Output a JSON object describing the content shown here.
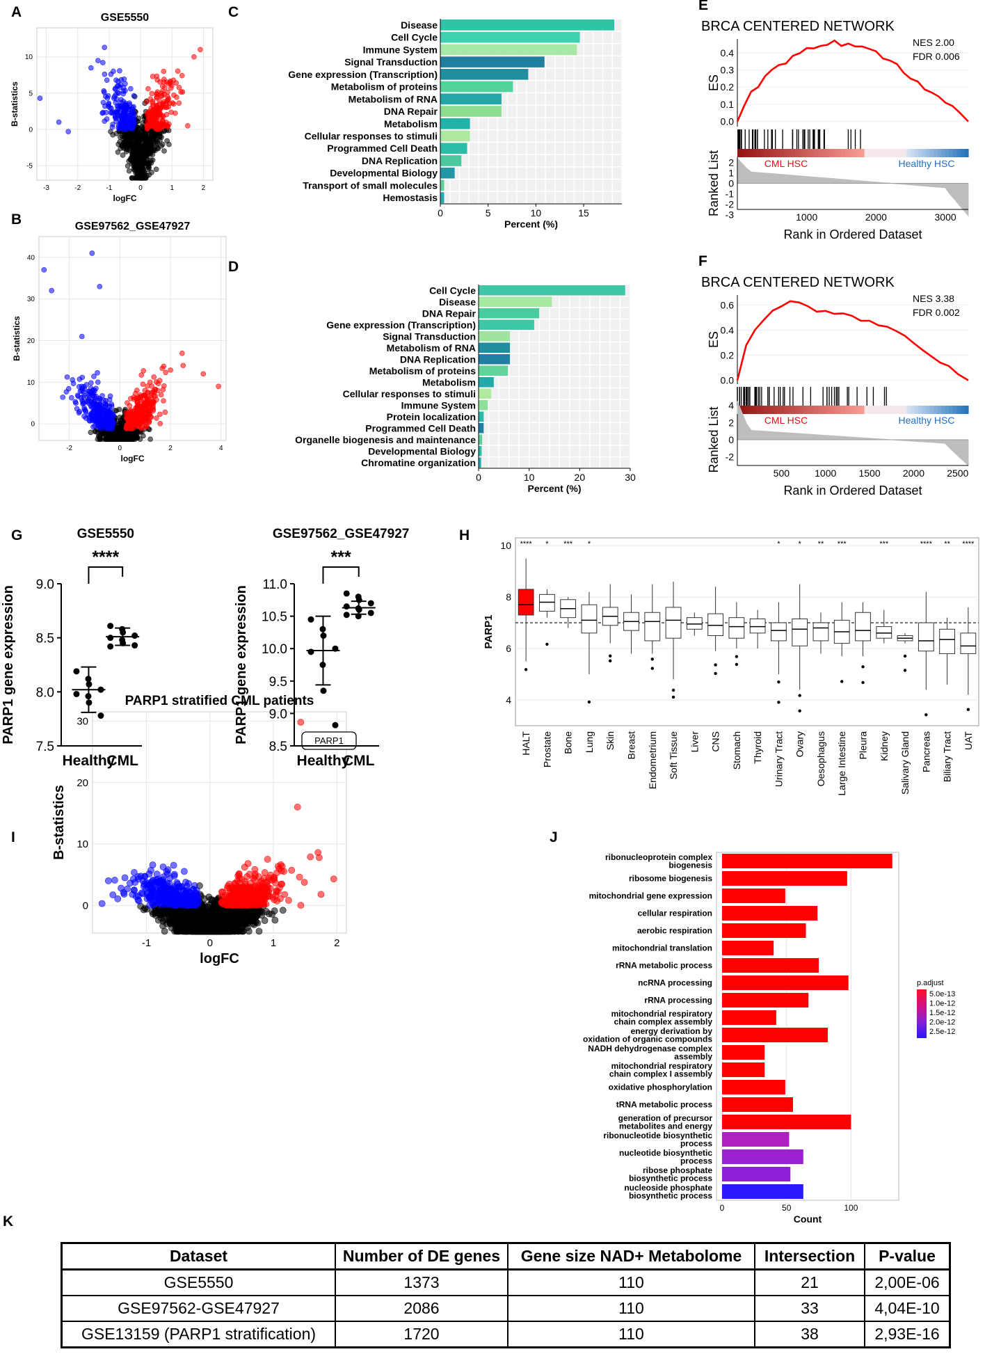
{
  "panels": {
    "A": {
      "letter": "A",
      "type": "scatter",
      "title": "GSE5550",
      "xlabel": "logFC",
      "ylabel": "B-statistics",
      "xlim": [
        -3.3,
        2.3
      ],
      "ylim": [
        -7,
        14
      ],
      "xticks": [
        -3,
        -2,
        -1,
        0,
        1,
        2
      ],
      "yticks": [
        -5,
        0,
        5,
        10
      ]
    },
    "B": {
      "letter": "B",
      "type": "scatter",
      "title": "GSE97562_GSE47927",
      "xlabel": "logFC",
      "ylabel": "B-statistics",
      "xlim": [
        -3.2,
        4.2
      ],
      "ylim": [
        -4,
        45
      ],
      "xticks": [
        -2,
        0,
        2,
        4
      ],
      "yticks": [
        0,
        10,
        20,
        30,
        40
      ]
    },
    "C": {
      "letter": "C",
      "type": "bar",
      "xlabel": "Percent (%)",
      "xlim": [
        0,
        19
      ],
      "xticks": [
        0,
        5,
        10,
        15
      ],
      "categories": [
        "Disease",
        "Cell Cycle",
        "Immune System",
        "Signal Transduction",
        "Gene expression (Transcription)",
        "Metabolism of proteins",
        "Metabolism of RNA",
        "DNA Repair",
        "Metabolism",
        "Cellular responses to stimuli",
        "Programmed Cell Death",
        "DNA Replication",
        "Developmental Biology",
        "Transport of small molecules",
        "Hemostasis"
      ],
      "values": [
        18.2,
        14.6,
        14.3,
        10.9,
        9.2,
        7.6,
        6.4,
        6.4,
        3.1,
        3.1,
        2.8,
        2.2,
        1.5,
        0.4,
        0.4
      ],
      "colors": [
        "#2ec4a6",
        "#3ed0b0",
        "#a7e9a4",
        "#1f7fa0",
        "#1f8ea0",
        "#52d39c",
        "#24a6a6",
        "#8ddf8f",
        "#22b3a8",
        "#aee8a0",
        "#2bbda8",
        "#4bc89e",
        "#2197a6",
        "#5fd09a",
        "#26aab0"
      ]
    },
    "D": {
      "letter": "D",
      "type": "bar",
      "xlabel": "Percent (%)",
      "xlim": [
        0,
        30
      ],
      "xticks": [
        0,
        10,
        20,
        30
      ],
      "categories": [
        "Cell Cycle",
        "Disease",
        "DNA Repair",
        "Gene expression (Transcription)",
        "Signal Transduction",
        "Metabolism of RNA",
        "DNA Replication",
        "Metabolism of proteins",
        "Metabolism",
        "Cellular responses to stimuli",
        "Immune System",
        "Protein localization",
        "Programmed Cell Death",
        "Organelle biogenesis and maintenance",
        "Developmental Biology",
        "Chromatine organization"
      ],
      "values": [
        29.0,
        14.5,
        12.0,
        11.0,
        6.2,
        6.2,
        6.2,
        5.8,
        3.0,
        2.5,
        1.8,
        1.0,
        1.0,
        0.7,
        0.6,
        0.5
      ],
      "colors": [
        "#3ec6a6",
        "#a8e8a0",
        "#48cc9e",
        "#3cc8a4",
        "#9fe3a0",
        "#1f8ea0",
        "#1f7fa0",
        "#62d49a",
        "#22a9a8",
        "#b0ea9e",
        "#8fe09a",
        "#2cb8aa",
        "#1f7fa0",
        "#5fd09a",
        "#30bda8",
        "#26aab0"
      ]
    },
    "E": {
      "letter": "E",
      "type": "line",
      "title": "BRCA CENTERED NETWORK",
      "nes": "NES 2.00",
      "fdr": "FDR 0.006",
      "ylabel_top": "ES",
      "ylabel_bottom": "Ranked List",
      "xlabel": "Rank in Ordered Dataset",
      "x": [
        0,
        100,
        200,
        300,
        400,
        500,
        600,
        700,
        800,
        900,
        1000,
        1100,
        1200,
        1300,
        1400,
        1500,
        1600,
        1700,
        1800,
        1900,
        2000,
        2100,
        2200,
        2300,
        2400,
        2500,
        2600,
        2700,
        2800,
        2900,
        3000,
        3100,
        3200,
        3330
      ],
      "es": [
        0.0,
        0.09,
        0.16,
        0.21,
        0.26,
        0.3,
        0.33,
        0.35,
        0.38,
        0.4,
        0.42,
        0.43,
        0.45,
        0.46,
        0.46,
        0.45,
        0.45,
        0.44,
        0.43,
        0.42,
        0.4,
        0.37,
        0.34,
        0.32,
        0.29,
        0.26,
        0.23,
        0.2,
        0.17,
        0.14,
        0.11,
        0.08,
        0.05,
        0.0
      ],
      "xlim": [
        0,
        3330
      ],
      "xticks": [
        1000,
        2000,
        3000
      ],
      "es_ylim": [
        -0.03,
        0.48
      ],
      "es_yticks": [
        0.0,
        0.1,
        0.2,
        0.3,
        0.4
      ],
      "rl_yticks": [
        2,
        1,
        0,
        -1,
        -2,
        -3
      ],
      "left_label": "CML HSC",
      "right_label": "Healthy HSC"
    },
    "F": {
      "letter": "F",
      "type": "line",
      "title": "BRCA CENTERED NETWORK",
      "nes": "NES 3.38",
      "fdr": "FDR 0.002",
      "ylabel_top": "ES",
      "ylabel_bottom": "Ranked List",
      "xlabel": "Rank in Ordered Dataset",
      "x": [
        0,
        100,
        200,
        300,
        400,
        500,
        600,
        700,
        800,
        900,
        1000,
        1100,
        1200,
        1300,
        1400,
        1500,
        1600,
        1700,
        1800,
        1900,
        2000,
        2100,
        2200,
        2300,
        2400,
        2500,
        2620
      ],
      "es": [
        0.0,
        0.28,
        0.4,
        0.48,
        0.55,
        0.6,
        0.63,
        0.61,
        0.58,
        0.56,
        0.55,
        0.53,
        0.52,
        0.5,
        0.49,
        0.47,
        0.45,
        0.42,
        0.39,
        0.35,
        0.3,
        0.25,
        0.2,
        0.15,
        0.1,
        0.05,
        0.0
      ],
      "xlim": [
        0,
        2620
      ],
      "xticks": [
        500,
        1000,
        1500,
        2000,
        2500
      ],
      "es_ylim": [
        -0.03,
        0.68
      ],
      "es_yticks": [
        0.0,
        0.2,
        0.4,
        0.6
      ],
      "rl_yticks": [
        4,
        2,
        0,
        -2
      ],
      "left_label": "CML HSC",
      "right_label": "Healthy HSC"
    },
    "G": {
      "letter": "G",
      "type": "scatter",
      "plots": [
        {
          "title": "GSE5550",
          "ylabel": "PARP1 gene expression",
          "ylim": [
            7.5,
            9.0
          ],
          "yticks": [
            7.5,
            8.0,
            8.5,
            9.0
          ],
          "categories": [
            "Healthy",
            "CML"
          ],
          "significance": "****",
          "healthy": [
            8.19,
            8.12,
            8.07,
            8.02,
            7.98,
            7.96,
            7.9,
            7.78
          ],
          "cml": [
            8.61,
            8.58,
            8.55,
            8.52,
            8.5,
            8.48,
            8.45,
            8.43,
            8.42
          ],
          "healthy_mean": 8.02,
          "healthy_sd": 0.21,
          "cml_mean": 8.51,
          "cml_sd": 0.08
        },
        {
          "title": "GSE97562_GSE47927",
          "ylabel": "PARP1 gene expression",
          "ylim": [
            8.5,
            11.0
          ],
          "yticks": [
            8.5,
            9.0,
            9.5,
            10.0,
            10.5,
            11.0
          ],
          "categories": [
            "Healthy",
            "CML"
          ],
          "significance": "***",
          "healthy": [
            10.45,
            10.3,
            10.2,
            10.0,
            9.95,
            9.75,
            9.35,
            8.82
          ],
          "cml": [
            10.85,
            10.8,
            10.75,
            10.7,
            10.65,
            10.62,
            10.6,
            10.55,
            10.52,
            10.5
          ],
          "healthy_mean": 9.97,
          "healthy_sd": 0.53,
          "cml_mean": 10.63,
          "cml_sd": 0.1
        }
      ]
    },
    "H": {
      "letter": "H",
      "type": "box",
      "ylabel": "PARP1",
      "ylim": [
        3,
        10.3
      ],
      "yticks": [
        4,
        6,
        8,
        10
      ],
      "reference": 7.0,
      "categories": [
        "HALT",
        "Prostate",
        "Bone",
        "Lung",
        "Skin",
        "Breast",
        "Endometrium",
        "Soft Tissue",
        "Liver",
        "CNS",
        "Stomach",
        "Thyroid",
        "Urinary Tract",
        "Ovary",
        "Oesophagus",
        "Large Intestine",
        "Pleura",
        "Kidney",
        "Salivary Gland",
        "Pancreas",
        "Biliary Tract",
        "UAT"
      ],
      "stars": [
        "****",
        "*",
        "***",
        "*",
        "",
        "",
        "",
        "",
        "",
        "",
        "",
        "",
        "*",
        "*",
        "**",
        "***",
        "",
        "***",
        "",
        "****",
        "**",
        "****"
      ],
      "boxes": [
        [
          5.5,
          7.3,
          7.7,
          8.3,
          9.5
        ],
        [
          7.2,
          7.45,
          7.8,
          8.1,
          8.3
        ],
        [
          6.8,
          7.2,
          7.55,
          7.9,
          8.0
        ],
        [
          5.0,
          6.6,
          7.1,
          7.7,
          8.2
        ],
        [
          6.2,
          6.9,
          7.25,
          7.6,
          8.5
        ],
        [
          5.8,
          6.7,
          7.05,
          7.4,
          8.1
        ],
        [
          5.8,
          6.3,
          7.05,
          7.4,
          8.5
        ],
        [
          4.8,
          6.4,
          7.1,
          7.6,
          8.6
        ],
        [
          6.5,
          6.75,
          6.95,
          7.2,
          7.4
        ],
        [
          5.9,
          6.5,
          6.9,
          7.35,
          8.4
        ],
        [
          6.0,
          6.4,
          6.85,
          7.2,
          7.8
        ],
        [
          6.0,
          6.6,
          6.85,
          7.15,
          7.5
        ],
        [
          5.0,
          6.3,
          6.7,
          7.0,
          7.8
        ],
        [
          4.4,
          6.1,
          6.75,
          7.15,
          8.5
        ],
        [
          5.8,
          6.3,
          6.8,
          7.0,
          7.4
        ],
        [
          5.7,
          6.2,
          6.65,
          7.1,
          7.8
        ],
        [
          5.7,
          6.3,
          6.7,
          7.4,
          7.8
        ],
        [
          6.2,
          6.4,
          6.6,
          6.85,
          7.5
        ],
        [
          6.2,
          6.3,
          6.4,
          6.5,
          6.6
        ],
        [
          4.4,
          5.9,
          6.3,
          7.0,
          8.2
        ],
        [
          4.6,
          5.8,
          6.35,
          6.75,
          7.2
        ],
        [
          4.2,
          5.8,
          6.1,
          6.6,
          7.6
        ]
      ]
    },
    "I": {
      "letter": "I",
      "type": "scatter",
      "title": "PARP1 stratified CML patients",
      "xlabel": "logFC",
      "ylabel": "B-statistics",
      "label": "PARP1",
      "xlim": [
        -1.85,
        2.15
      ],
      "ylim": [
        -4.5,
        31.5
      ],
      "xticks": [
        -1,
        0,
        1,
        2
      ],
      "yticks": [
        0,
        10,
        20,
        30
      ]
    },
    "J": {
      "letter": "J",
      "type": "bar",
      "xlabel": "Count",
      "xlim": [
        0,
        137
      ],
      "xticks": [
        0,
        50,
        100
      ],
      "categories": [
        [
          "ribonucleoprotein complex",
          "biogenesis"
        ],
        [
          "ribosome biogenesis"
        ],
        [
          "mitochondrial gene expression"
        ],
        [
          "cellular respiration"
        ],
        [
          "aerobic respiration"
        ],
        [
          "mitochondrial translation"
        ],
        [
          "rRNA metabolic process"
        ],
        [
          "ncRNA processing"
        ],
        [
          "rRNA processing"
        ],
        [
          "mitochondrial respiratory",
          "chain complex assembly"
        ],
        [
          "energy derivation by",
          "oxidation of organic compounds"
        ],
        [
          "NADH dehydrogenase complex",
          "assembly"
        ],
        [
          "mitochondrial respiratory",
          "chain complex I assembly"
        ],
        [
          "oxidative phosphorylation"
        ],
        [
          "tRNA metabolic process"
        ],
        [
          "generation of precursor",
          "metabolites and energy"
        ],
        [
          "ribonucleotide biosynthetic",
          "process"
        ],
        [
          "nucleotide biosynthetic",
          "process"
        ],
        [
          "ribose phosphate",
          "biosynthetic process"
        ],
        [
          "nucleoside phosphate",
          "biosynthetic process"
        ]
      ],
      "values": [
        132,
        97,
        49,
        74,
        65,
        40,
        75,
        98,
        67,
        42,
        82,
        33,
        33,
        49,
        55,
        100,
        52,
        63,
        53,
        63
      ],
      "colors": [
        "#ff0000",
        "#ff0000",
        "#ff0000",
        "#ff0000",
        "#ff0000",
        "#ff0000",
        "#ff0000",
        "#ff0000",
        "#ff0000",
        "#ff0000",
        "#ff0000",
        "#ff0000",
        "#ff0000",
        "#ff0000",
        "#ff0000",
        "#ff0000",
        "#b020c0",
        "#9a20d0",
        "#9020d8",
        "#2a18ff"
      ],
      "legend_title": "p.adjust",
      "legend_labels": [
        "5.0e-13",
        "1.0e-12",
        "1.5e-12",
        "2.0e-12",
        "2.5e-12"
      ]
    },
    "K": {
      "letter": "K",
      "type": "table",
      "headers": [
        "Dataset",
        "Number of DE genes",
        "Gene size NAD+ Metabolome",
        "Intersection",
        "P-value"
      ],
      "rows": [
        [
          "GSE5550",
          "1373",
          "110",
          "21",
          "2,00E-06"
        ],
        [
          "GSE97562-GSE47927",
          "2086",
          "110",
          "33",
          "4,04E-10"
        ],
        [
          "GSE13159 (PARP1 stratification)",
          "1720",
          "110",
          "38",
          "2,93E-16"
        ]
      ]
    }
  },
  "chart_data": [
    {
      "type": "scatter",
      "title": "GSE5550",
      "xlabel": "logFC",
      "ylabel": "B-statistics",
      "xlim": [
        -3.3,
        2.3
      ],
      "ylim": [
        -7,
        14
      ]
    },
    {
      "type": "scatter",
      "title": "GSE97562_GSE47927",
      "xlabel": "logFC",
      "ylabel": "B-statistics",
      "xlim": [
        -3.2,
        4.2
      ],
      "ylim": [
        -4,
        45
      ]
    },
    {
      "type": "bar",
      "xlabel": "Percent (%)",
      "categories": [
        "Disease",
        "Cell Cycle",
        "Immune System",
        "Signal Transduction",
        "Gene expression (Transcription)",
        "Metabolism of proteins",
        "Metabolism of RNA",
        "DNA Repair",
        "Metabolism",
        "Cellular responses to stimuli",
        "Programmed Cell Death",
        "DNA Replication",
        "Developmental Biology",
        "Transport of small molecules",
        "Hemostasis"
      ],
      "values": [
        18.2,
        14.6,
        14.3,
        10.9,
        9.2,
        7.6,
        6.4,
        6.4,
        3.1,
        3.1,
        2.8,
        2.2,
        1.5,
        0.4,
        0.4
      ]
    },
    {
      "type": "bar",
      "xlabel": "Percent (%)",
      "categories": [
        "Cell Cycle",
        "Disease",
        "DNA Repair",
        "Gene expression (Transcription)",
        "Signal Transduction",
        "Metabolism of RNA",
        "DNA Replication",
        "Metabolism of proteins",
        "Metabolism",
        "Cellular responses to stimuli",
        "Immune System",
        "Protein localization",
        "Programmed Cell Death",
        "Organelle biogenesis and maintenance",
        "Developmental Biology",
        "Chromatine organization"
      ],
      "values": [
        29.0,
        14.5,
        12.0,
        11.0,
        6.2,
        6.2,
        6.2,
        5.8,
        3.0,
        2.5,
        1.8,
        1.0,
        1.0,
        0.7,
        0.6,
        0.5
      ]
    },
    {
      "type": "line",
      "title": "BRCA CENTERED NETWORK",
      "annotation": [
        "NES 2.00",
        "FDR 0.006"
      ],
      "xlabel": "Rank in Ordered Dataset",
      "ylabel": "ES"
    },
    {
      "type": "line",
      "title": "BRCA CENTERED NETWORK",
      "annotation": [
        "NES 3.38",
        "FDR 0.002"
      ],
      "xlabel": "Rank in Ordered Dataset",
      "ylabel": "ES"
    },
    {
      "type": "scatter",
      "title": "GSE5550",
      "ylabel": "PARP1 gene expression",
      "categories": [
        "Healthy",
        "CML"
      ],
      "means": [
        8.02,
        8.51
      ]
    },
    {
      "type": "scatter",
      "title": "GSE97562_GSE47927",
      "ylabel": "PARP1 gene expression",
      "categories": [
        "Healthy",
        "CML"
      ],
      "means": [
        9.97,
        10.63
      ]
    },
    {
      "type": "box",
      "ylabel": "PARP1",
      "categories": [
        "HALT",
        "Prostate",
        "Bone",
        "Lung",
        "Skin",
        "Breast",
        "Endometrium",
        "Soft Tissue",
        "Liver",
        "CNS",
        "Stomach",
        "Thyroid",
        "Urinary Tract",
        "Ovary",
        "Oesophagus",
        "Large Intestine",
        "Pleura",
        "Kidney",
        "Salivary Gland",
        "Pancreas",
        "Biliary Tract",
        "UAT"
      ],
      "medians": [
        7.7,
        7.8,
        7.55,
        7.1,
        7.25,
        7.05,
        7.05,
        7.1,
        6.95,
        6.9,
        6.85,
        6.85,
        6.7,
        6.75,
        6.8,
        6.65,
        6.7,
        6.6,
        6.4,
        6.3,
        6.35,
        6.1
      ]
    },
    {
      "type": "scatter",
      "title": "PARP1 stratified CML patients",
      "xlabel": "logFC",
      "ylabel": "B-statistics",
      "annotation": "PARP1"
    },
    {
      "type": "bar",
      "xlabel": "Count",
      "values": [
        132,
        97,
        49,
        74,
        65,
        40,
        75,
        98,
        67,
        42,
        82,
        33,
        33,
        49,
        55,
        100,
        52,
        63,
        53,
        63
      ]
    },
    {
      "type": "table",
      "headers": [
        "Dataset",
        "Number of DE genes",
        "Gene size NAD+ Metabolome",
        "Intersection",
        "P-value"
      ]
    }
  ]
}
